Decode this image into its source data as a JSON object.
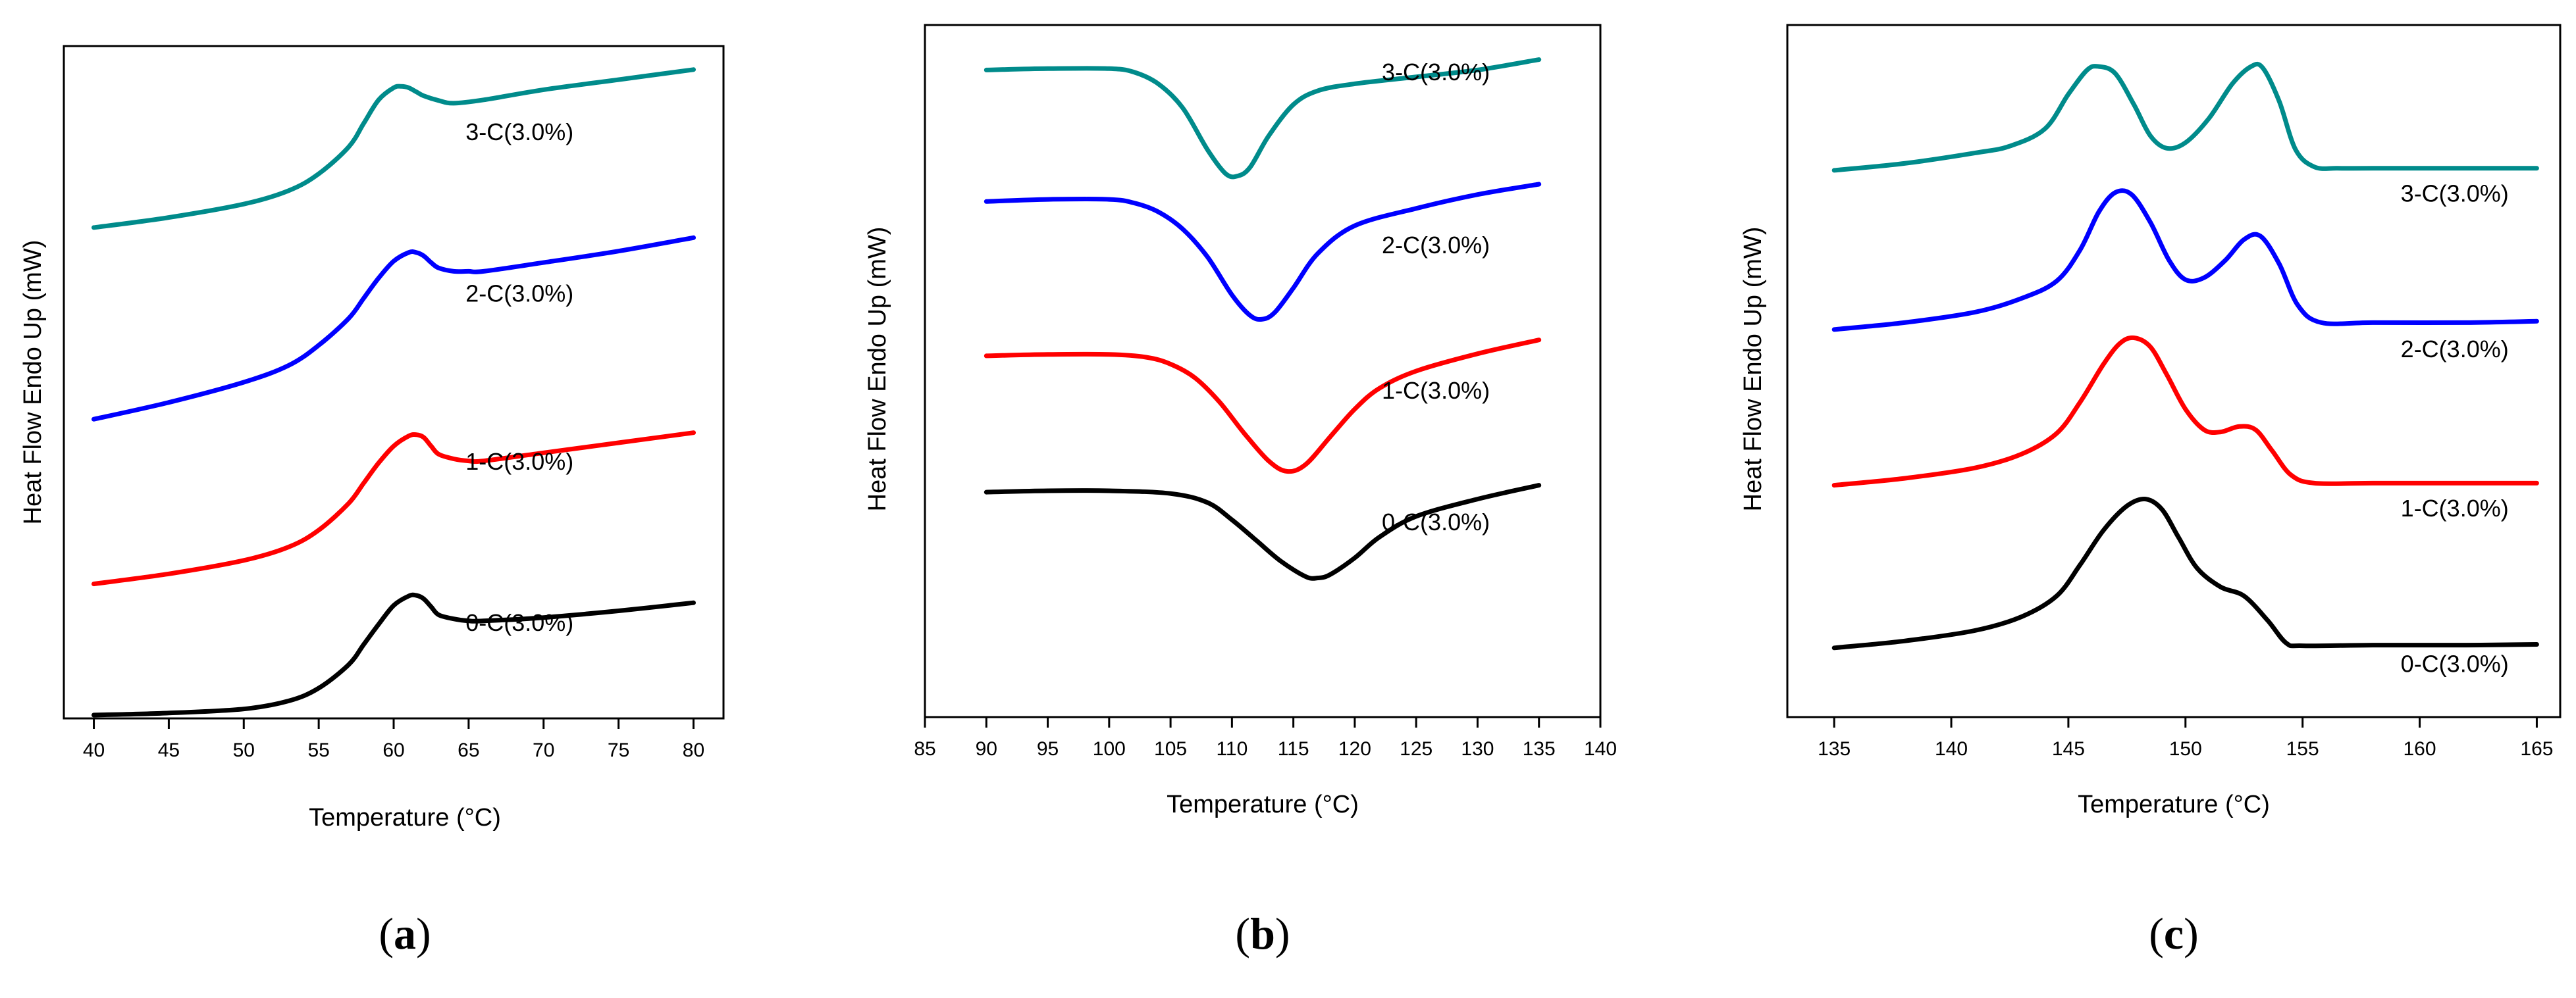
{
  "chart_data": [
    {
      "type": "line",
      "panel": "a",
      "caption": {
        "open": "(",
        "letter": "a",
        "close": ")"
      },
      "xlabel": "Temperature (°C)",
      "ylabel": "Heat Flow Endo Up (mW)",
      "xlim": [
        38,
        82
      ],
      "xticks": [
        40,
        45,
        50,
        55,
        60,
        65,
        70,
        75,
        80
      ],
      "ylim": [
        0,
        100
      ],
      "series": [
        {
          "name": "0-C(3.0%)",
          "color": "#000000",
          "label_anchor": [
            72,
            13
          ],
          "x": [
            40,
            45,
            50,
            53,
            55,
            57,
            58,
            59,
            60,
            61,
            61.5,
            62,
            62.5,
            63,
            64,
            65,
            66,
            70,
            75,
            80
          ],
          "y": [
            0.5,
            0.8,
            1.4,
            2.6,
            4.5,
            8,
            11,
            14,
            16.8,
            18.2,
            18.3,
            17.8,
            16.6,
            15.4,
            14.8,
            14.5,
            14.5,
            15,
            16,
            17.2
          ]
        },
        {
          "name": "1-C(3.0%)",
          "color": "#ff0000",
          "label_anchor": [
            72,
            37
          ],
          "x": [
            40,
            45,
            50,
            53,
            55,
            57,
            58,
            59,
            60,
            61,
            61.5,
            62,
            62.5,
            63,
            64,
            65,
            66,
            70,
            75,
            80
          ],
          "y": [
            20,
            21.5,
            23.5,
            25.5,
            28,
            32,
            35,
            38,
            40.5,
            42,
            42.2,
            41.8,
            40.5,
            39.3,
            38.6,
            38.3,
            38.3,
            39.5,
            41,
            42.5
          ]
        },
        {
          "name": "2-C(3.0%)",
          "color": "#0000ff",
          "label_anchor": [
            72,
            62
          ],
          "x": [
            40,
            45,
            50,
            53,
            55,
            57,
            58,
            59,
            60,
            61,
            61.5,
            62,
            62.5,
            63,
            64,
            65,
            66,
            70,
            75,
            80
          ],
          "y": [
            44.5,
            47,
            50,
            52.5,
            55.5,
            59.5,
            62.5,
            65.5,
            68,
            69.3,
            69.3,
            68.8,
            67.8,
            67,
            66.5,
            66.5,
            66.5,
            67.8,
            69.5,
            71.5
          ]
        },
        {
          "name": "3-C(3.0%)",
          "color": "#008b8b",
          "label_anchor": [
            72,
            86
          ],
          "x": [
            40,
            45,
            50,
            53,
            55,
            57,
            58,
            59,
            60,
            60.5,
            61,
            61.5,
            62,
            63,
            64,
            66,
            70,
            75,
            80
          ],
          "y": [
            73,
            74.5,
            76.5,
            78.5,
            81,
            85,
            88.5,
            92,
            93.8,
            94,
            93.8,
            93.2,
            92.6,
            91.9,
            91.5,
            92,
            93.5,
            95,
            96.5
          ]
        }
      ]
    },
    {
      "type": "line",
      "panel": "b",
      "caption": {
        "open": "(",
        "letter": "b",
        "close": ")"
      },
      "xlabel": "Temperature (°C)",
      "ylabel": "Heat Flow Endo Up (mW)",
      "xlim": [
        85,
        140
      ],
      "xticks": [
        85,
        90,
        95,
        100,
        105,
        110,
        115,
        120,
        125,
        130,
        135,
        140
      ],
      "ylim": [
        0,
        100
      ],
      "series": [
        {
          "name": "0-C(3.0%)",
          "color": "#000000",
          "label_anchor": [
            131,
            27
          ],
          "x": [
            90,
            95,
            100,
            105,
            108,
            110,
            112,
            114,
            116,
            117,
            118,
            120,
            122,
            125,
            130,
            135
          ],
          "y": [
            32.5,
            32.7,
            32.7,
            32.3,
            31,
            28.5,
            25.5,
            22.5,
            20.3,
            20.1,
            20.6,
            23,
            26,
            29,
            31.5,
            33.5
          ]
        },
        {
          "name": "1-C(3.0%)",
          "color": "#ff0000",
          "label_anchor": [
            131,
            46
          ],
          "x": [
            90,
            95,
            100,
            103,
            105,
            107,
            109,
            111,
            113,
            114.5,
            116,
            118,
            120,
            122,
            125,
            130,
            135
          ],
          "y": [
            52.2,
            52.4,
            52.4,
            52,
            51,
            49,
            45.5,
            41,
            37,
            35.5,
            36.5,
            40.5,
            44.5,
            47.5,
            50,
            52.5,
            54.5
          ]
        },
        {
          "name": "2-C(3.0%)",
          "color": "#0000ff",
          "label_anchor": [
            131,
            67
          ],
          "x": [
            90,
            95,
            100,
            102,
            104,
            106,
            108,
            110,
            111.5,
            112.5,
            113.5,
            115,
            117,
            120,
            125,
            130,
            135
          ],
          "y": [
            74.5,
            74.8,
            74.8,
            74.3,
            73,
            70.5,
            66.5,
            61,
            58,
            57.5,
            58.5,
            62,
            67,
            71,
            73.5,
            75.5,
            77
          ]
        },
        {
          "name": "3-C(3.0%)",
          "color": "#008b8b",
          "label_anchor": [
            131,
            92
          ],
          "x": [
            90,
            95,
            100,
            102,
            104,
            106,
            108,
            109.5,
            110.5,
            111.5,
            113,
            115,
            117,
            120,
            125,
            130,
            135
          ],
          "y": [
            93.5,
            93.7,
            93.7,
            93.2,
            91.5,
            88,
            82,
            78.5,
            78.2,
            79.5,
            84,
            88.5,
            90.5,
            91.5,
            92.5,
            93.5,
            95
          ]
        }
      ]
    },
    {
      "type": "line",
      "panel": "c",
      "caption": {
        "open": "(",
        "letter": "c",
        "close": ")"
      },
      "xlabel": "Temperature (°C)",
      "ylabel": "Heat Flow Endo Up (mW)",
      "xlim": [
        133,
        166
      ],
      "xticks": [
        135,
        140,
        145,
        150,
        155,
        160,
        165
      ],
      "ylim": [
        0,
        100
      ],
      "series": [
        {
          "name": "0-C(3.0%)",
          "color": "#000000",
          "label_anchor": [
            163.8,
            6.5
          ],
          "x": [
            135,
            138,
            141,
            143,
            144.5,
            145.5,
            146.5,
            147.5,
            148.3,
            149,
            149.7,
            150.5,
            151.5,
            152.5,
            153.5,
            154.3,
            155,
            158,
            162,
            165
          ],
          "y": [
            10,
            11,
            12.5,
            14.5,
            17.5,
            22,
            27,
            30.5,
            31.5,
            30,
            26,
            21.5,
            18.8,
            17.5,
            14,
            10.7,
            10.3,
            10.4,
            10.4,
            10.5
          ]
        },
        {
          "name": "1-C(3.0%)",
          "color": "#ff0000",
          "label_anchor": [
            163.8,
            29
          ],
          "x": [
            135,
            138,
            141,
            143,
            144.5,
            145.5,
            146.5,
            147.2,
            147.8,
            148.5,
            149.2,
            150,
            150.8,
            151.5,
            152.3,
            153,
            153.7,
            154.5,
            155.5,
            158,
            162,
            165
          ],
          "y": [
            33.5,
            34.5,
            36,
            38,
            41,
            45.5,
            51,
            54,
            54.8,
            53.5,
            49.5,
            44.5,
            41.5,
            41.2,
            42,
            41.5,
            38.5,
            35,
            33.8,
            33.8,
            33.8,
            33.8
          ]
        },
        {
          "name": "2-C(3.0%)",
          "color": "#0000ff",
          "label_anchor": [
            163.8,
            52
          ],
          "x": [
            135,
            138,
            141,
            143,
            144.5,
            145.5,
            146.3,
            147,
            147.7,
            148.5,
            149.3,
            150,
            150.8,
            151.7,
            152.5,
            153.2,
            154,
            154.8,
            155.8,
            158,
            162,
            165
          ],
          "y": [
            56,
            57,
            58.5,
            60.5,
            63,
            67.5,
            73,
            75.8,
            75.5,
            71.5,
            66,
            63.2,
            63.5,
            66,
            69,
            69.5,
            65.5,
            59.5,
            57,
            57,
            57,
            57.2
          ]
        },
        {
          "name": "3-C(3.0%)",
          "color": "#008b8b",
          "label_anchor": [
            163.8,
            74.5
          ],
          "x": [
            135,
            138,
            141,
            142.5,
            144,
            145,
            145.8,
            146.3,
            147,
            147.8,
            148.5,
            149.2,
            150,
            151,
            152,
            152.8,
            153.3,
            154,
            154.7,
            155.5,
            156.5,
            158,
            162,
            165
          ],
          "y": [
            79,
            80,
            81.5,
            82.5,
            85,
            90,
            93.5,
            94,
            93,
            88.5,
            84,
            82.2,
            83,
            86.5,
            91.5,
            94,
            93.8,
            89,
            82,
            79.5,
            79.3,
            79.3,
            79.3,
            79.3
          ]
        }
      ]
    }
  ]
}
